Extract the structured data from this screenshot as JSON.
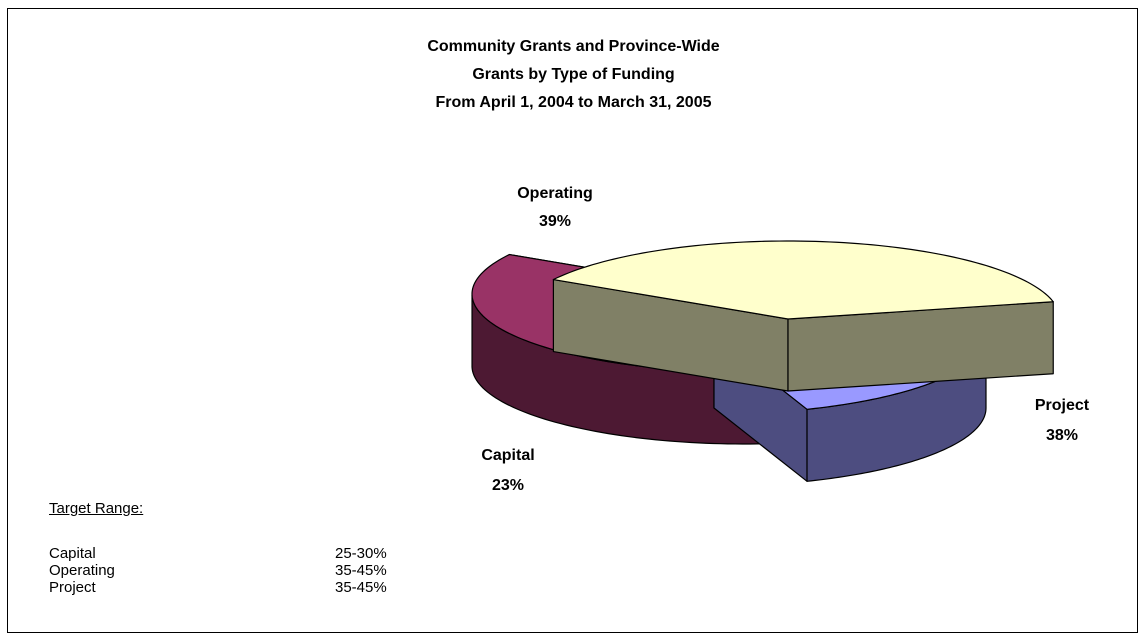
{
  "chart_data": {
    "type": "pie",
    "title_lines": [
      "Community Grants and Province-Wide",
      "Grants by Type of Funding",
      "From April 1, 2004 to March 31, 2005"
    ],
    "slices": [
      {
        "label": "Operating",
        "percent_label": "39%",
        "value": 39,
        "top_color": "#993366",
        "side_color": "#4D1933"
      },
      {
        "label": "Project",
        "percent_label": "38%",
        "value": 38,
        "top_color": "#FFFFCC",
        "side_color": "#808066"
      },
      {
        "label": "Capital",
        "percent_label": "23%",
        "value": 23,
        "top_color": "#9999FF",
        "side_color": "#4D4D80"
      }
    ],
    "style": "3d-exploded"
  },
  "target_range": {
    "heading": "Target Range:",
    "rows": [
      {
        "category": "Capital",
        "range": "25-30%"
      },
      {
        "category": "Operating",
        "range": "35-45%"
      },
      {
        "category": "Project",
        "range": "35-45%"
      }
    ]
  }
}
